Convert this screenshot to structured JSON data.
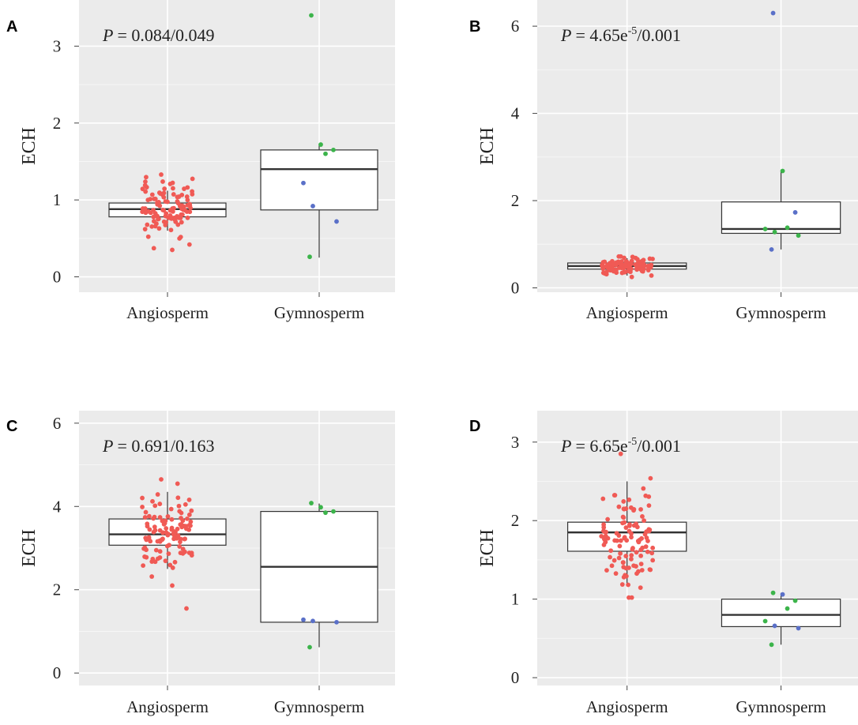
{
  "figure": {
    "colors": {
      "panel_bg": "#ebebeb",
      "grid": "#ffffff",
      "angiosperm": "#f05a55",
      "gymnosperm_a": "#3cb44b",
      "gymnosperm_b": "#5a70c8",
      "box_line": "#333333"
    }
  },
  "chart_data": [
    {
      "type": "box",
      "panel_label": "A",
      "annotation": {
        "prefix": "P",
        "value": "= 0.084/0.049"
      },
      "ylabel": "ECH",
      "categories": [
        "Angiosperm",
        "Gymnosperm"
      ],
      "ylim": [
        -0.2,
        3.6
      ],
      "yticks": [
        0,
        1,
        2,
        3
      ],
      "boxes": [
        {
          "category": "Angiosperm",
          "q1": 0.78,
          "median": 0.88,
          "q3": 0.96,
          "whisker_low": 0.6,
          "whisker_high": 1.12
        },
        {
          "category": "Gymnosperm",
          "q1": 0.87,
          "median": 1.4,
          "q3": 1.65,
          "whisker_low": 0.25,
          "whisker_high": 1.72
        }
      ],
      "angiosperm_points": {
        "count": 110,
        "center": 0.88,
        "spread": 0.17,
        "min": 0.35,
        "max": 1.33
      },
      "gymnosperm_points": [
        {
          "y": 3.4,
          "group": "green"
        },
        {
          "y": 1.72,
          "group": "green"
        },
        {
          "y": 1.65,
          "group": "green"
        },
        {
          "y": 1.6,
          "group": "green"
        },
        {
          "y": 1.22,
          "group": "blue"
        },
        {
          "y": 0.92,
          "group": "blue"
        },
        {
          "y": 0.72,
          "group": "blue"
        },
        {
          "y": 0.26,
          "group": "green"
        }
      ]
    },
    {
      "type": "box",
      "panel_label": "B",
      "annotation": {
        "prefix": "P",
        "value": "= 4.65e",
        "sup": "-5",
        "suffix": "/0.001"
      },
      "ylabel": "ECH",
      "categories": [
        "Angiosperm",
        "Gymnosperm"
      ],
      "ylim": [
        -0.1,
        6.6
      ],
      "yticks": [
        0,
        2,
        4,
        6
      ],
      "boxes": [
        {
          "category": "Angiosperm",
          "q1": 0.43,
          "median": 0.5,
          "q3": 0.57,
          "whisker_low": 0.28,
          "whisker_high": 0.68
        },
        {
          "category": "Gymnosperm",
          "q1": 1.25,
          "median": 1.35,
          "q3": 1.97,
          "whisker_low": 0.88,
          "whisker_high": 2.68
        }
      ],
      "angiosperm_points": {
        "count": 110,
        "center": 0.5,
        "spread": 0.09,
        "min": 0.25,
        "max": 0.72
      },
      "gymnosperm_points": [
        {
          "y": 6.3,
          "group": "blue"
        },
        {
          "y": 2.68,
          "group": "green"
        },
        {
          "y": 1.73,
          "group": "blue"
        },
        {
          "y": 1.38,
          "group": "green"
        },
        {
          "y": 1.35,
          "group": "green"
        },
        {
          "y": 1.28,
          "group": "green"
        },
        {
          "y": 1.2,
          "group": "green"
        },
        {
          "y": 0.88,
          "group": "blue"
        }
      ]
    },
    {
      "type": "box",
      "panel_label": "C",
      "annotation": {
        "prefix": "P",
        "value": "= 0.691/0.163"
      },
      "ylabel": "ECH",
      "categories": [
        "Angiosperm",
        "Gymnosperm"
      ],
      "ylim": [
        -0.3,
        6.3
      ],
      "yticks": [
        0,
        2,
        4,
        6
      ],
      "boxes": [
        {
          "category": "Angiosperm",
          "q1": 3.07,
          "median": 3.33,
          "q3": 3.7,
          "whisker_low": 2.5,
          "whisker_high": 4.35
        },
        {
          "category": "Gymnosperm",
          "q1": 1.22,
          "median": 2.55,
          "q3": 3.88,
          "whisker_low": 0.62,
          "whisker_high": 4.07
        }
      ],
      "angiosperm_points": {
        "count": 110,
        "center": 3.35,
        "spread": 0.42,
        "min": 2.1,
        "max": 4.65
      },
      "gymnosperm_points": [
        {
          "y": 4.08,
          "group": "green"
        },
        {
          "y": 3.98,
          "group": "green"
        },
        {
          "y": 3.88,
          "group": "green"
        },
        {
          "y": 3.85,
          "group": "green"
        },
        {
          "y": 1.28,
          "group": "blue"
        },
        {
          "y": 1.25,
          "group": "blue"
        },
        {
          "y": 1.22,
          "group": "blue"
        },
        {
          "y": 0.62,
          "group": "green"
        }
      ],
      "outliers": [
        {
          "category": "Angiosperm",
          "y": 1.55
        }
      ]
    },
    {
      "type": "box",
      "panel_label": "D",
      "annotation": {
        "prefix": "P",
        "value": "= 6.65e",
        "sup": "-5",
        "suffix": "/0.001"
      },
      "ylabel": "ECH",
      "categories": [
        "Angiosperm",
        "Gymnosperm"
      ],
      "ylim": [
        -0.1,
        3.4
      ],
      "yticks": [
        0,
        1,
        2,
        3
      ],
      "boxes": [
        {
          "category": "Angiosperm",
          "q1": 1.61,
          "median": 1.85,
          "q3": 1.98,
          "whisker_low": 1.2,
          "whisker_high": 2.5
        },
        {
          "category": "Gymnosperm",
          "q1": 0.65,
          "median": 0.8,
          "q3": 1.0,
          "whisker_low": 0.42,
          "whisker_high": 1.08
        }
      ],
      "angiosperm_points": {
        "count": 110,
        "center": 1.8,
        "spread": 0.3,
        "min": 1.02,
        "max": 2.85
      },
      "gymnosperm_points": [
        {
          "y": 1.08,
          "group": "green"
        },
        {
          "y": 1.06,
          "group": "blue"
        },
        {
          "y": 0.98,
          "group": "green"
        },
        {
          "y": 0.88,
          "group": "green"
        },
        {
          "y": 0.72,
          "group": "green"
        },
        {
          "y": 0.66,
          "group": "blue"
        },
        {
          "y": 0.63,
          "group": "blue"
        },
        {
          "y": 0.42,
          "group": "green"
        }
      ]
    }
  ]
}
